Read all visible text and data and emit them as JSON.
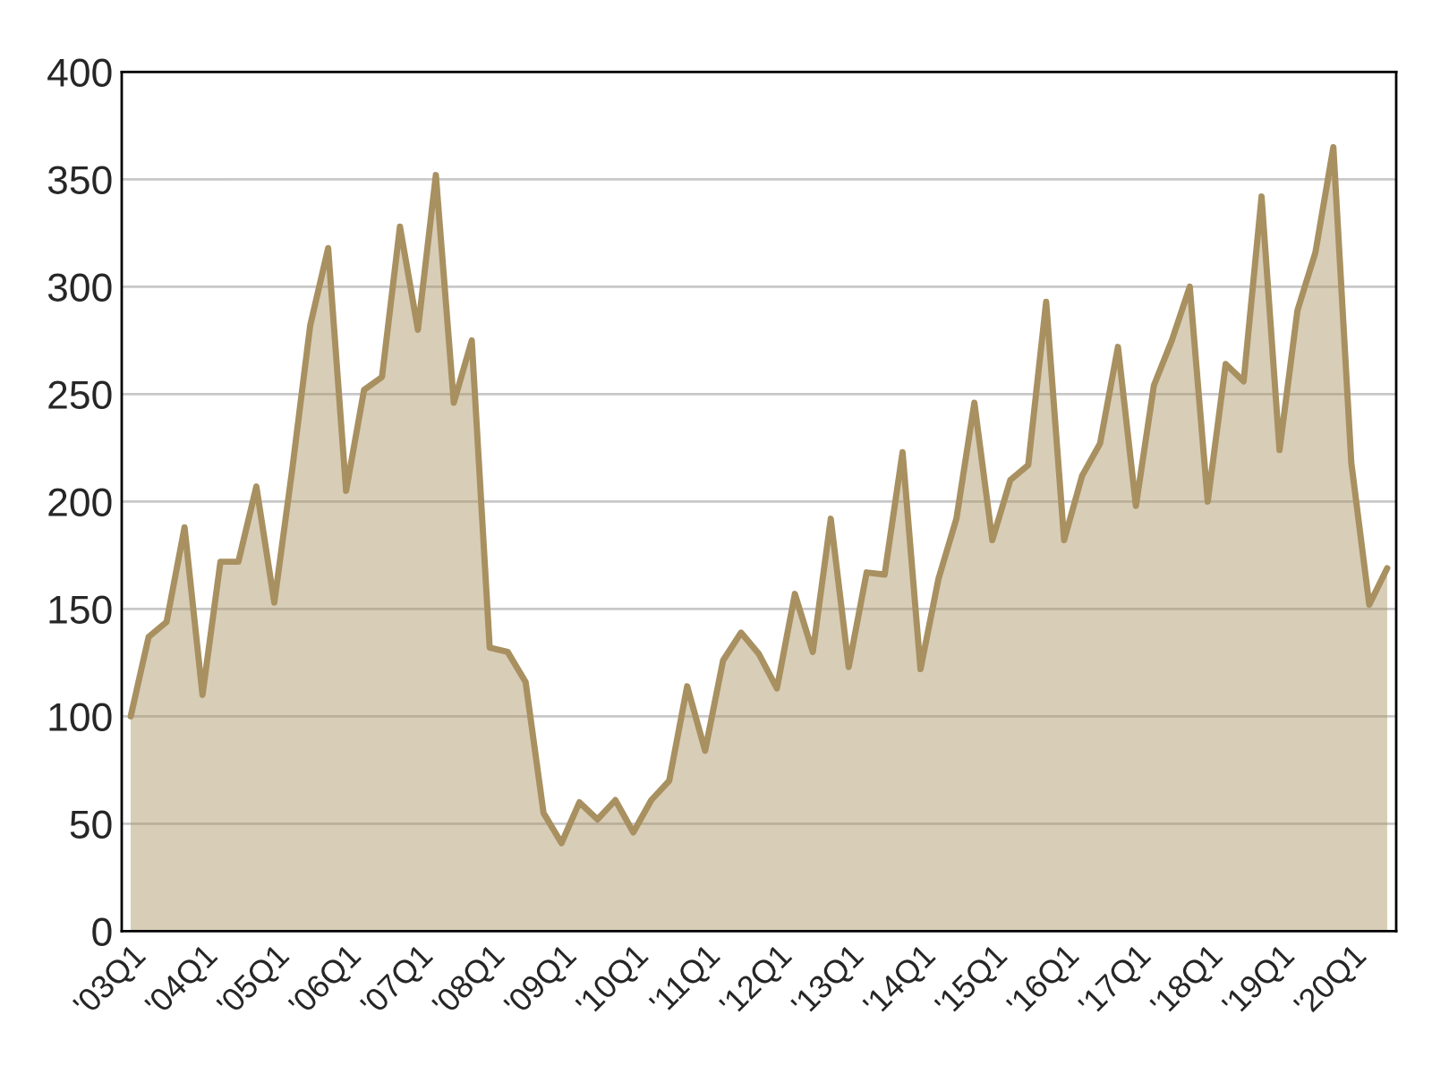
{
  "chart_data": {
    "type": "area",
    "categories": [
      "'03Q1",
      null,
      null,
      null,
      "'04Q1",
      null,
      null,
      null,
      "'05Q1",
      null,
      null,
      null,
      "'06Q1",
      null,
      null,
      null,
      "'07Q1",
      null,
      null,
      null,
      "'08Q1",
      null,
      null,
      null,
      "'09Q1",
      null,
      null,
      null,
      "'10Q1",
      null,
      null,
      null,
      "'11Q1",
      null,
      null,
      null,
      "'12Q1",
      null,
      null,
      null,
      "'13Q1",
      null,
      null,
      null,
      "'14Q1",
      null,
      null,
      null,
      "'15Q1",
      null,
      null,
      null,
      "'16Q1",
      null,
      null,
      null,
      "'17Q1",
      null,
      null,
      null,
      "'18Q1",
      null,
      null,
      null,
      "'19Q1",
      null,
      null,
      null,
      "'20Q1",
      null,
      null
    ],
    "series": [
      {
        "color": "#a89060",
        "values": [
          100,
          137,
          144,
          188,
          110,
          172,
          172,
          207,
          153,
          215,
          282,
          318,
          205,
          252,
          258,
          328,
          280,
          352,
          246,
          275,
          132,
          130,
          116,
          55,
          41,
          60,
          52,
          61,
          46,
          61,
          70,
          114,
          84,
          126,
          139,
          129,
          113,
          157,
          130,
          192,
          123,
          167,
          166,
          223,
          122,
          164,
          192,
          246,
          182,
          210,
          217,
          293,
          182,
          212,
          227,
          272,
          198,
          254,
          275,
          300,
          200,
          264,
          256,
          342,
          224,
          289,
          316,
          365,
          218,
          152,
          169
        ]
      }
    ],
    "ylim": [
      0,
      400
    ],
    "yticks": [
      0,
      50,
      100,
      150,
      200,
      250,
      300,
      350,
      400
    ],
    "grid": "y",
    "legend": false
  }
}
